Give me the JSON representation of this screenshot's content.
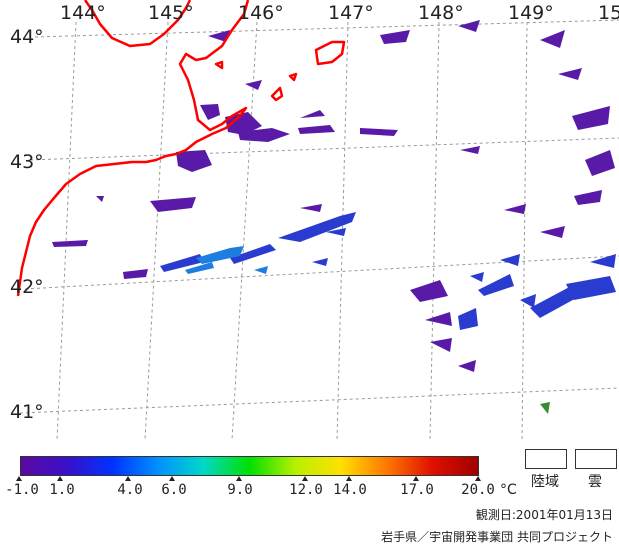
{
  "map": {
    "longitude_labels": [
      "144°",
      "145°",
      "146°",
      "147°",
      "148°",
      "149°",
      "15"
    ],
    "latitude_labels": [
      "44°",
      "43°",
      "42°",
      "41°"
    ],
    "colors": {
      "coastline": "#ff0000",
      "grid": "#9a9a9a",
      "sst_cold": "#5a1aa8",
      "sst_mid": "#2a3cd0",
      "sst_warm": "#1e7de0"
    }
  },
  "colorbar": {
    "tick_labels": [
      "-1.0",
      "1.0",
      "4.0",
      "6.0",
      "9.0",
      "12.0",
      "14.0",
      "17.0",
      "20.0"
    ],
    "unit": "°C",
    "colors": [
      "#5a0aa0",
      "#3a10c8",
      "#0032ff",
      "#0090ff",
      "#00d8c8",
      "#00e000",
      "#b8f000",
      "#ffe000",
      "#ff7800",
      "#e01000",
      "#a00000"
    ]
  },
  "legend": {
    "land_label": "陸域",
    "cloud_label": "雲"
  },
  "observation_date": "観測日:2001年01月13日",
  "credit": "岩手県／宇宙開発事業団 共同プロジェクト"
}
